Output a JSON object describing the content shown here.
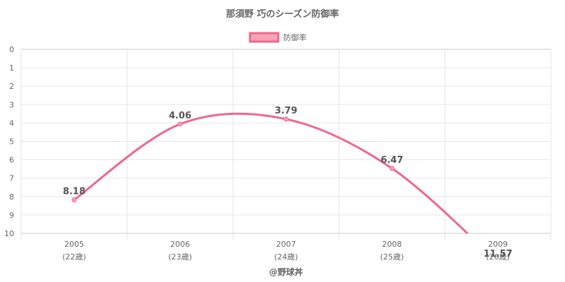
{
  "chart_data": {
    "type": "line",
    "title": "那須野 巧のシーズン防御率",
    "categories": [
      "2005",
      "2006",
      "2007",
      "2008",
      "2009"
    ],
    "category_sublabels": [
      "(22歳)",
      "(23歳)",
      "(24歳)",
      "(25歳)",
      "(26歳)"
    ],
    "series": [
      {
        "name": "防御率",
        "values": [
          8.18,
          4.06,
          3.79,
          6.47,
          11.57
        ]
      }
    ],
    "data_labels": [
      "8.18",
      "4.06",
      "3.79",
      "6.47",
      "11.57"
    ],
    "ylim": [
      0,
      10
    ],
    "y_reversed": true,
    "y_ticks": [
      "0",
      "1",
      "2",
      "3",
      "4",
      "5",
      "6",
      "7",
      "8",
      "9",
      "10"
    ],
    "xlabel": "",
    "ylabel": "",
    "legend_position": "top",
    "grid": true,
    "colors": {
      "line": "#f06789",
      "fill": "#f8a3b8",
      "grid": "#e6e6e6",
      "axis": "#c8c8c8",
      "text": "#666666"
    }
  },
  "credit": "@野球丼"
}
